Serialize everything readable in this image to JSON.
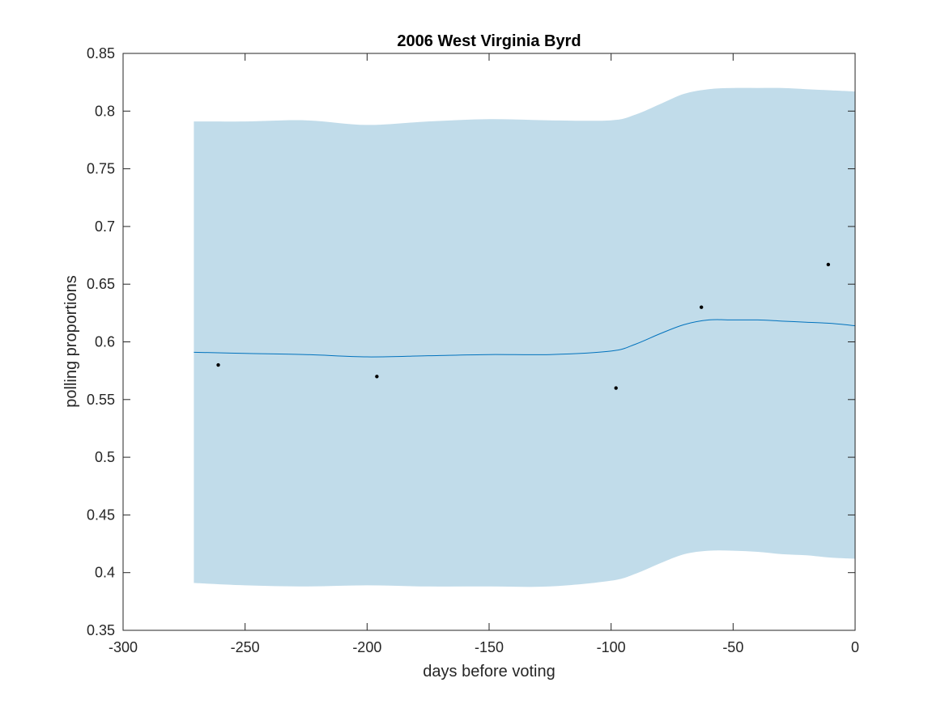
{
  "chart_data": {
    "type": "line",
    "title": "2006 West Virginia Byrd",
    "xlabel": "days before voting",
    "ylabel": "polling proportions",
    "xlim": [
      -300,
      0
    ],
    "ylim": [
      0.35,
      0.85
    ],
    "xticks": [
      -300,
      -250,
      -200,
      -150,
      -100,
      -50,
      0
    ],
    "yticks": [
      0.35,
      0.4,
      0.45,
      0.5,
      0.55,
      0.6,
      0.65,
      0.7,
      0.75,
      0.8,
      0.85
    ],
    "xtick_labels": [
      "-300",
      "-250",
      "-200",
      "-150",
      "-100",
      "-50",
      "0"
    ],
    "ytick_labels": [
      "0.35",
      "0.4",
      "0.45",
      "0.5",
      "0.55",
      "0.6",
      "0.65",
      "0.7",
      "0.75",
      "0.8",
      "0.85"
    ],
    "grid": false,
    "colors": {
      "band": "#c1dcea",
      "line": "#0072bd",
      "points": "#000000",
      "axes": "#262626"
    },
    "band": {
      "x": [
        -271,
        -250,
        -225,
        -200,
        -175,
        -150,
        -125,
        -100,
        -90,
        -80,
        -70,
        -60,
        -50,
        -40,
        -30,
        -20,
        -10,
        0
      ],
      "upper": [
        0.791,
        0.791,
        0.792,
        0.788,
        0.791,
        0.793,
        0.792,
        0.792,
        0.797,
        0.806,
        0.815,
        0.819,
        0.82,
        0.82,
        0.82,
        0.819,
        0.818,
        0.817
      ],
      "lower": [
        0.391,
        0.389,
        0.388,
        0.389,
        0.388,
        0.388,
        0.388,
        0.393,
        0.399,
        0.408,
        0.416,
        0.419,
        0.419,
        0.418,
        0.416,
        0.415,
        0.413,
        0.412
      ]
    },
    "series": [
      {
        "x": [
          -271,
          -250,
          -225,
          -200,
          -175,
          -150,
          -125,
          -100,
          -90,
          -80,
          -70,
          -60,
          -50,
          -40,
          -30,
          -20,
          -10,
          0
        ],
        "values": [
          0.591,
          0.59,
          0.589,
          0.587,
          0.588,
          0.589,
          0.589,
          0.592,
          0.598,
          0.607,
          0.615,
          0.619,
          0.619,
          0.619,
          0.618,
          0.617,
          0.616,
          0.614
        ]
      }
    ],
    "points": {
      "x": [
        -261,
        -196,
        -98,
        -63,
        -11
      ],
      "y": [
        0.58,
        0.57,
        0.56,
        0.63,
        0.667
      ]
    }
  }
}
